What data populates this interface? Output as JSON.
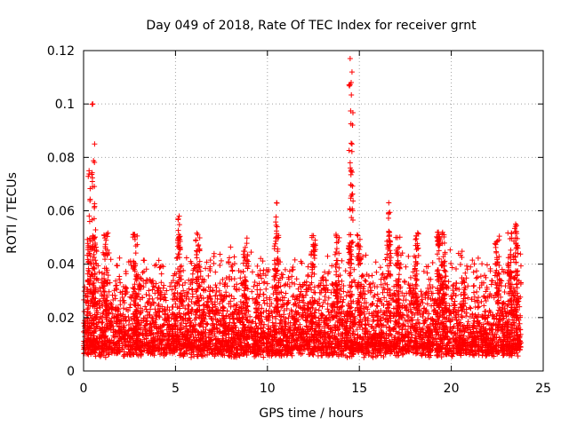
{
  "chart_data": {
    "type": "scatter",
    "title": "Day 049 of 2018, Rate Of TEC Index for receiver grnt",
    "xlabel": "GPS time / hours",
    "ylabel": "ROTI / TECUs",
    "xlim": [
      0,
      25
    ],
    "ylim": [
      0,
      0.12
    ],
    "x_ticks": [
      0,
      5,
      10,
      15,
      20,
      25
    ],
    "y_ticks": [
      0,
      0.02,
      0.04,
      0.06,
      0.08,
      0.1,
      0.12
    ],
    "x_tick_labels": [
      "0",
      "5",
      "10",
      "15",
      "20",
      "25"
    ],
    "y_tick_labels": [
      "0",
      "0.02",
      "0.04",
      "0.06",
      "0.08",
      "0.1",
      "0.12"
    ],
    "grid": true,
    "marker": "+",
    "color": "#ff0000",
    "series": [
      {
        "name": "ROTI",
        "x_range": [
          0,
          23.8
        ],
        "baseline_low": 0.005,
        "baseline_high": 0.045,
        "peaks": [
          {
            "x": 0.5,
            "y": 0.1
          },
          {
            "x": 0.6,
            "y": 0.085
          },
          {
            "x": 0.3,
            "y": 0.075
          },
          {
            "x": 5.2,
            "y": 0.058
          },
          {
            "x": 10.5,
            "y": 0.063
          },
          {
            "x": 14.5,
            "y": 0.117
          },
          {
            "x": 14.6,
            "y": 0.112
          },
          {
            "x": 14.6,
            "y": 0.085
          },
          {
            "x": 14.5,
            "y": 0.078
          },
          {
            "x": 16.6,
            "y": 0.063
          },
          {
            "x": 19.3,
            "y": 0.052
          },
          {
            "x": 23.5,
            "y": 0.055
          }
        ]
      }
    ]
  }
}
